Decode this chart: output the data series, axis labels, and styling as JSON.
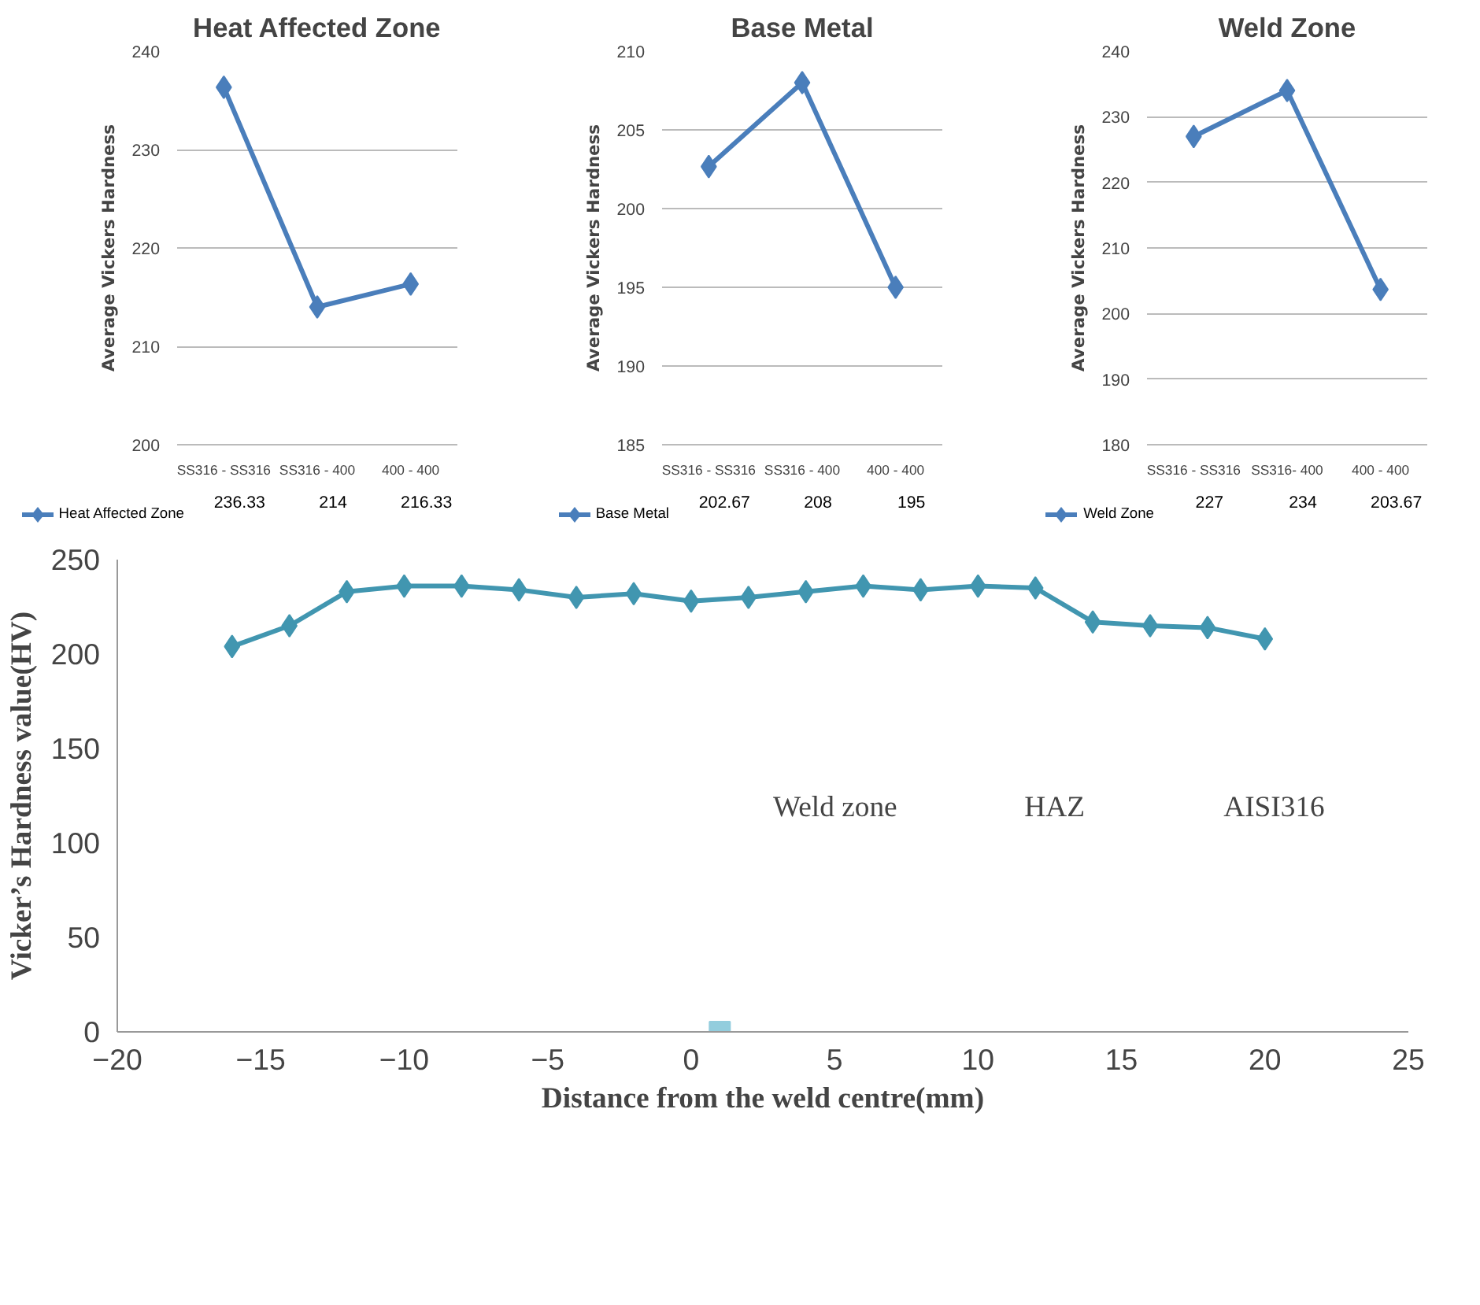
{
  "chart_data": [
    {
      "type": "line",
      "title": "Heat Affected Zone",
      "ylabel": "Average Vickers Hardness",
      "categories": [
        "SS316 - SS316",
        "SS316 - 400",
        "400 - 400"
      ],
      "series": [
        {
          "name": "Heat Affected Zone",
          "color": "#4a7ebb",
          "values": [
            236.33,
            214,
            216.33
          ]
        }
      ],
      "ylim": [
        200,
        240
      ],
      "yticks": [
        200,
        210,
        220,
        230,
        240
      ],
      "grid": "y",
      "marker": "diamond",
      "data_labels": true,
      "legend": "bottom left"
    },
    {
      "type": "line",
      "title": "Base Metal",
      "ylabel": "Average Vickers Hardness",
      "categories": [
        "SS316 - SS316",
        "SS316 - 400",
        "400 - 400"
      ],
      "series": [
        {
          "name": "Base Metal",
          "color": "#4a7ebb",
          "values": [
            202.67,
            208,
            195
          ]
        }
      ],
      "ylim": [
        185,
        210
      ],
      "yticks": [
        185,
        190,
        195,
        200,
        205,
        210
      ],
      "grid": "y",
      "marker": "diamond",
      "data_labels": true,
      "legend": "bottom left"
    },
    {
      "type": "line",
      "title": "Weld Zone",
      "ylabel": "Average Vickers Hardness",
      "categories": [
        "SS316 - SS316",
        "SS316- 400",
        "400 - 400"
      ],
      "series": [
        {
          "name": "Weld Zone",
          "color": "#4a7ebb",
          "values": [
            227,
            234,
            203.67
          ]
        }
      ],
      "ylim": [
        180,
        240
      ],
      "yticks": [
        180,
        190,
        200,
        210,
        220,
        230,
        240
      ],
      "grid": "y",
      "marker": "diamond",
      "data_labels": true,
      "legend": "bottom left"
    },
    {
      "type": "line",
      "xlabel": "Distance from the weld centre(mm)",
      "ylabel": "Vicker’s Hardness value(HV)",
      "series": [
        {
          "type": "line",
          "color": "#4196b0",
          "marker": "diamond",
          "x": [
            -16,
            -14,
            -12,
            -10,
            -8,
            -6,
            -4,
            -2,
            0,
            2,
            4,
            6,
            8,
            10,
            12,
            14,
            16,
            18,
            20
          ],
          "values": [
            204,
            215,
            233,
            236,
            236,
            234,
            230,
            232,
            228,
            230,
            233,
            236,
            234,
            236,
            235,
            217,
            215,
            214,
            208
          ]
        },
        {
          "type": "scatter",
          "color": "#93cddd",
          "marker": "square",
          "x": [
            1
          ],
          "values": [
            0
          ]
        }
      ],
      "xlim": [
        -20,
        25
      ],
      "xticks": [
        -20,
        -15,
        -10,
        -5,
        0,
        5,
        10,
        15,
        20,
        25
      ],
      "ylim": [
        0,
        250
      ],
      "yticks": [
        0,
        50,
        100,
        150,
        200,
        250
      ],
      "grid": false,
      "annotations": [
        "Weld zone",
        "HAZ",
        "AISI316"
      ]
    }
  ]
}
